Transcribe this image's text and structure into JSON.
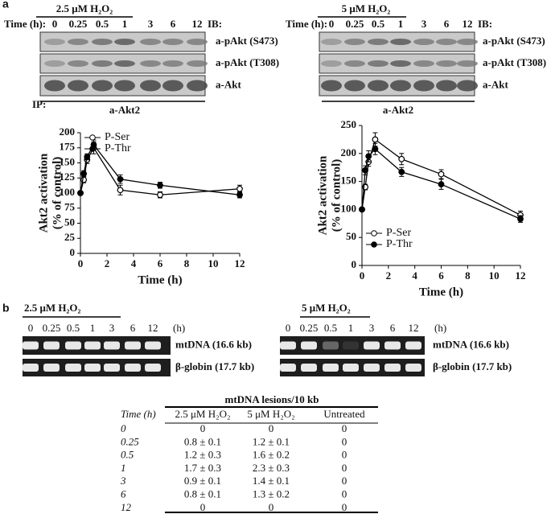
{
  "panel_a": {
    "label": "a",
    "blots": [
      {
        "treatment": "2.5 μM H₂O₂",
        "time_label": "Time (h):",
        "times": [
          "0",
          "0.25",
          "0.5",
          "1",
          "3",
          "6",
          "12"
        ],
        "ib_label": "IB:",
        "antibodies": [
          "a-pAkt (S473)",
          "a-pAkt (T308)",
          "a-Akt"
        ],
        "ip_label": "IP:",
        "ip_antibody": "a-Akt2"
      },
      {
        "treatment": "5 μM H₂O₂",
        "time_label": "Time (h):",
        "times": [
          "0",
          "0.25",
          "0.5",
          "1",
          "3",
          "6",
          "12"
        ],
        "ib_label": "IB:",
        "antibodies": [
          "a-pAkt (S473)",
          "a-pAkt (T308)",
          "a-Akt"
        ],
        "ip_antibody": "a-Akt2"
      }
    ]
  },
  "chart_data": [
    {
      "type": "line",
      "x_label": "Time (h)",
      "y_label": [
        "Akt2 activation",
        "(% of control)"
      ],
      "x": [
        0,
        0.25,
        0.5,
        1,
        3,
        6,
        12
      ],
      "xlim": [
        0,
        12
      ],
      "xticks": [
        0,
        2,
        4,
        6,
        8,
        10,
        12
      ],
      "ylim": [
        0,
        200
      ],
      "yticks": [
        0,
        25,
        50,
        75,
        100,
        125,
        150,
        175,
        200
      ],
      "legend": "upper left",
      "series": [
        {
          "name": "P-Ser",
          "color": "#000000",
          "marker": "open",
          "values": [
            100,
            122,
            155,
            175,
            105,
            97,
            107
          ],
          "errors": [
            0,
            5,
            6,
            10,
            8,
            5,
            6
          ]
        },
        {
          "name": "P-Thr",
          "color": "#000000",
          "marker": "filled",
          "values": [
            100,
            132,
            160,
            180,
            123,
            113,
            97
          ],
          "errors": [
            0,
            5,
            5,
            8,
            7,
            5,
            5
          ]
        }
      ]
    },
    {
      "type": "line",
      "x_label": "Time (h)",
      "y_label": [
        "Akt2 activation",
        "(% of control)"
      ],
      "x": [
        0,
        0.25,
        0.5,
        1,
        3,
        6,
        12
      ],
      "xlim": [
        0,
        12
      ],
      "xticks": [
        0,
        2,
        4,
        6,
        8,
        10,
        12
      ],
      "ylim": [
        0,
        250
      ],
      "yticks": [
        0,
        50,
        100,
        150,
        200,
        250
      ],
      "legend": "lower left",
      "series": [
        {
          "name": "P-Ser",
          "color": "#000000",
          "marker": "open",
          "values": [
            100,
            140,
            185,
            225,
            190,
            163,
            90
          ],
          "errors": [
            0,
            5,
            8,
            12,
            10,
            8,
            7
          ]
        },
        {
          "name": "P-Thr",
          "color": "#000000",
          "marker": "filled",
          "values": [
            100,
            170,
            195,
            208,
            167,
            145,
            83
          ],
          "errors": [
            0,
            8,
            10,
            10,
            8,
            9,
            6
          ]
        }
      ]
    }
  ],
  "panel_b": {
    "label": "b",
    "gels": [
      {
        "treatment": "2.5 μM H₂O₂",
        "times": [
          "0",
          "0.25",
          "0.5",
          "1",
          "3",
          "6",
          "12"
        ],
        "unit": "(h)",
        "bands": [
          "mtDNA (16.6 kb)",
          "β-globin (17.7 kb)"
        ]
      },
      {
        "treatment": "5 μM H₂O₂",
        "times": [
          "0",
          "0.25",
          "0.5",
          "1",
          "3",
          "6",
          "12"
        ],
        "unit": "(h)",
        "bands": [
          "mtDNA (16.6 kb)",
          "β-globin (17.7 kb)"
        ]
      }
    ]
  },
  "table": {
    "title": "mtDNA lesions/10 kb",
    "header": [
      "Time (h)",
      "2.5 μM H₂O₂",
      "5 μM H₂O₂",
      "Untreated"
    ],
    "rows": [
      [
        "0",
        "0",
        "0",
        "0"
      ],
      [
        "0.25",
        "0.8 ± 0.1",
        "1.2 ± 0.1",
        "0"
      ],
      [
        "0.5",
        "1.2 ± 0.3",
        "1.6 ± 0.2",
        "0"
      ],
      [
        "1",
        "1.7 ± 0.3",
        "2.3 ± 0.3",
        "0"
      ],
      [
        "3",
        "0.9 ± 0.1",
        "1.4 ± 0.1",
        "0"
      ],
      [
        "6",
        "0.8 ± 0.1",
        "1.3 ± 0.2",
        "0"
      ],
      [
        "12",
        "0",
        "0",
        "0"
      ]
    ]
  }
}
